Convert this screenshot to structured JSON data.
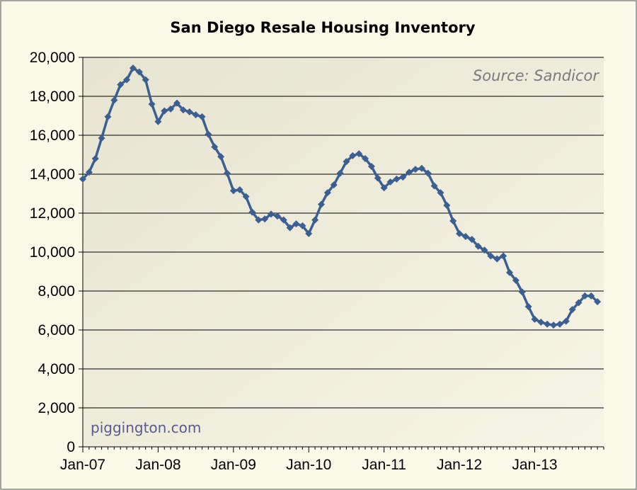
{
  "chart_data": {
    "type": "line",
    "title": "San Diego Resale Housing Inventory",
    "source_note": "Source: Sandicor",
    "credit": "piggington.com",
    "ylim": [
      0,
      20000
    ],
    "yticks": [
      0,
      2000,
      4000,
      6000,
      8000,
      10000,
      12000,
      14000,
      16000,
      18000,
      20000
    ],
    "ytick_labels": [
      "0",
      "2,000",
      "4,000",
      "6,000",
      "8,000",
      "10,000",
      "12,000",
      "14,000",
      "16,000",
      "18,000",
      "20,000"
    ],
    "xtick_labels": [
      "Jan-07",
      "Jan-08",
      "Jan-09",
      "Jan-10",
      "Jan-11",
      "Jan-12",
      "Jan-13"
    ],
    "x_start": "Jan-07",
    "grid": true,
    "colors": {
      "line": "#3b5f91",
      "plot_bg": "#ecead9",
      "page_bg": "#fbf9e7",
      "grid": "#000000"
    },
    "series": [
      {
        "values": [
          13750,
          14100,
          14800,
          15850,
          16950,
          17800,
          18600,
          18850,
          19450,
          19250,
          18850,
          17600,
          16700,
          17250,
          17350,
          17650,
          17300,
          17200,
          17050,
          16950,
          16050,
          15400,
          14900,
          14050,
          13150,
          13200,
          12850,
          12050,
          11650,
          11700,
          11950,
          11850,
          11650,
          11250,
          11450,
          11350,
          10950,
          11650,
          12450,
          13050,
          13450,
          14050,
          14650,
          14950,
          15050,
          14800,
          14400,
          13800,
          13300,
          13600,
          13750,
          13850,
          14100,
          14250,
          14300,
          14050,
          13400,
          13050,
          12400,
          11600,
          10950,
          10800,
          10650,
          10300,
          10100,
          9800,
          9650,
          9800,
          8950,
          8550,
          7950,
          7200,
          6550,
          6400,
          6300,
          6250,
          6300,
          6450,
          7050,
          7400,
          7750,
          7750,
          7450
        ]
      }
    ]
  }
}
